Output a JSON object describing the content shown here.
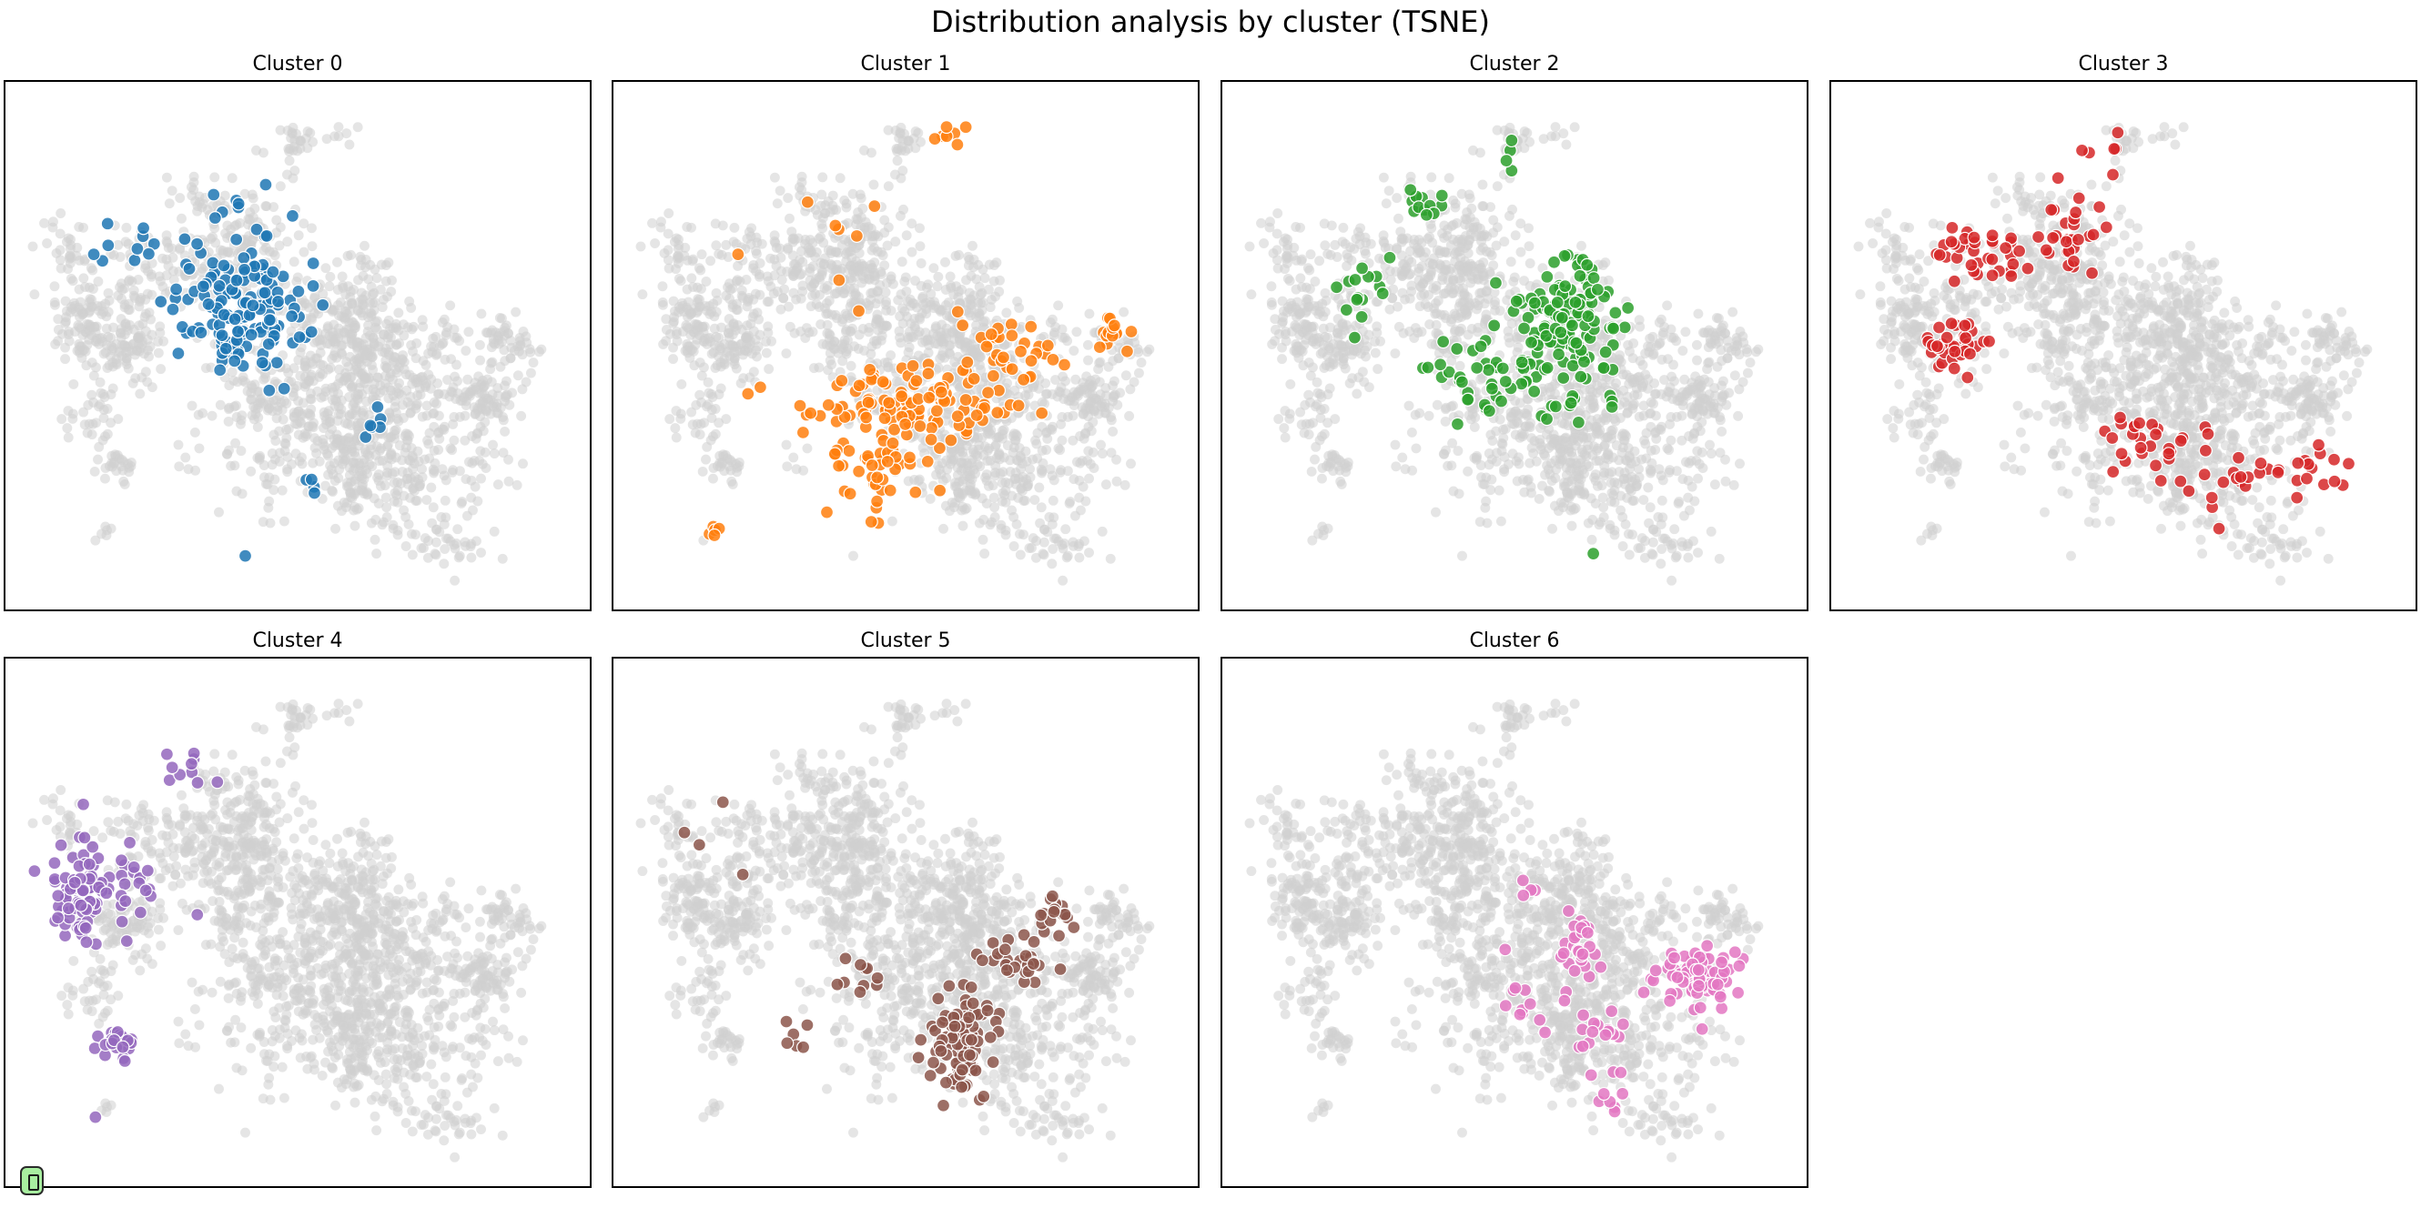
{
  "figure": {
    "title": "Distribution analysis by cluster (TSNE)"
  },
  "chart_data": [
    {
      "type": "scatter",
      "title": "Cluster 0",
      "color": "#1f77b4",
      "blobs": [
        [
          -12,
          12,
          13,
          12,
          150
        ],
        [
          -33,
          23,
          5,
          4,
          10
        ],
        [
          -13,
          30,
          5,
          3,
          7
        ],
        [
          15,
          -10,
          4,
          3,
          6
        ],
        [
          3,
          -20,
          2,
          2,
          4
        ],
        [
          -10,
          -32,
          1,
          1,
          1
        ]
      ]
    },
    {
      "type": "scatter",
      "title": "Cluster 1",
      "color": "#ff7f0e",
      "blobs": [
        [
          2,
          -5,
          22,
          7,
          110
        ],
        [
          -5,
          -17,
          10,
          7,
          45
        ],
        [
          20,
          5,
          8,
          5,
          30
        ],
        [
          40,
          7,
          5,
          3,
          14
        ],
        [
          8,
          43,
          3,
          3,
          7
        ],
        [
          -38,
          -28,
          3,
          2,
          5
        ],
        [
          -15,
          23,
          15,
          10,
          8
        ]
      ]
    },
    {
      "type": "scatter",
      "title": "Cluster 2",
      "color": "#2ca02c",
      "blobs": [
        [
          10,
          8,
          10,
          13,
          140
        ],
        [
          -5,
          0,
          12,
          10,
          40
        ],
        [
          -18,
          30,
          5,
          3,
          12
        ],
        [
          -30,
          15,
          8,
          8,
          15
        ],
        [
          0,
          38,
          2,
          4,
          4
        ],
        [
          15,
          -32,
          1,
          1,
          1
        ]
      ]
    },
    {
      "type": "scatter",
      "title": "Cluster 3",
      "color": "#d62728",
      "blobs": [
        [
          -33,
          5,
          5,
          6,
          35
        ],
        [
          -28,
          22,
          10,
          6,
          35
        ],
        [
          -10,
          25,
          8,
          8,
          30
        ],
        [
          5,
          -12,
          10,
          6,
          25
        ],
        [
          22,
          -18,
          15,
          8,
          25
        ],
        [
          38,
          -15,
          8,
          6,
          12
        ],
        [
          -5,
          40,
          5,
          3,
          6
        ]
      ]
    },
    {
      "type": "scatter",
      "title": "Cluster 4",
      "color": "#9467bd",
      "blobs": [
        [
          -42,
          10,
          6,
          9,
          90
        ],
        [
          -35,
          -17,
          4,
          3,
          25
        ],
        [
          -32,
          12,
          4,
          8,
          15
        ],
        [
          -20,
          32,
          6,
          3,
          10
        ],
        [
          -20,
          6,
          1,
          1,
          1
        ],
        [
          -40,
          -30,
          1,
          1,
          1
        ]
      ]
    },
    {
      "type": "scatter",
      "title": "Cluster 5",
      "color": "#8c564b",
      "blobs": [
        [
          10,
          -17,
          6,
          9,
          100
        ],
        [
          22,
          -2,
          7,
          5,
          30
        ],
        [
          30,
          6,
          5,
          4,
          15
        ],
        [
          -10,
          -5,
          4,
          4,
          10
        ],
        [
          -22,
          -15,
          3,
          4,
          6
        ],
        [
          -35,
          20,
          8,
          12,
          4
        ]
      ]
    },
    {
      "type": "scatter",
      "title": "Cluster 6",
      "color": "#e377c2",
      "blobs": [
        [
          36,
          -5,
          7,
          5,
          90
        ],
        [
          12,
          0,
          5,
          7,
          30
        ],
        [
          15,
          -17,
          10,
          6,
          20
        ],
        [
          0,
          -10,
          6,
          6,
          10
        ],
        [
          16,
          -27,
          6,
          3,
          6
        ],
        [
          4,
          10,
          3,
          3,
          4
        ]
      ]
    }
  ]
}
